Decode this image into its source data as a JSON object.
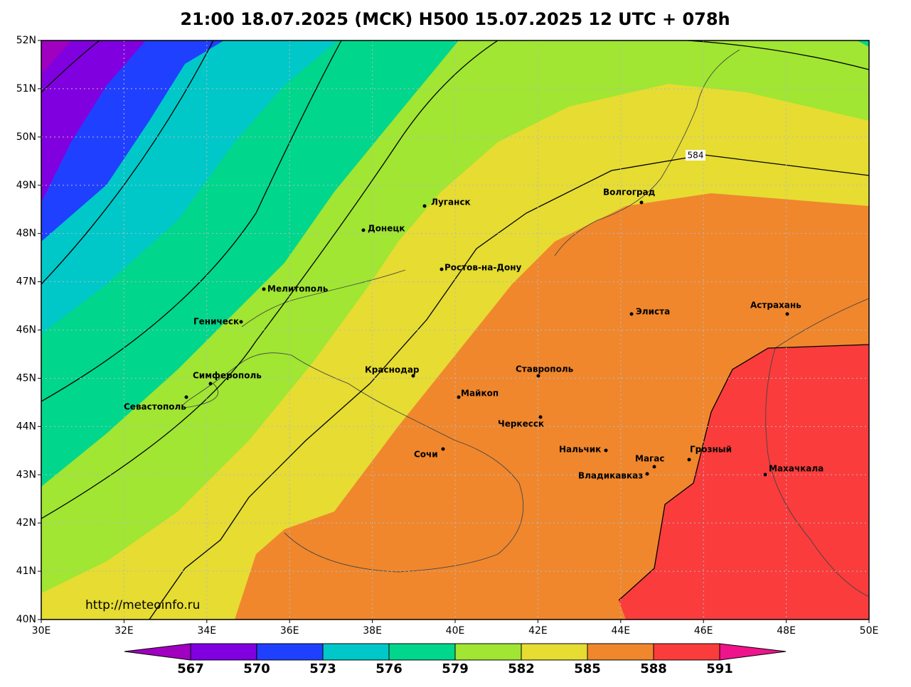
{
  "title": "21:00 18.07.2025 (MCK) H500  15.07.2025 12 UTC + 078h",
  "lat_labels": [
    "52N",
    "51N",
    "50N",
    "49N",
    "48N",
    "47N",
    "46N",
    "45N",
    "44N",
    "43N",
    "42N",
    "41N",
    "40N"
  ],
  "lon_labels": [
    "30E",
    "32E",
    "34E",
    "36E",
    "38E",
    "40E",
    "42E",
    "44E",
    "46E",
    "48E",
    "50E"
  ],
  "cities": [
    "Луганск",
    "Донецк",
    "Ростов-на-Дону",
    "Мелитополь",
    "Геническ",
    "Симферополь",
    "Севастополь",
    "Краснодар",
    "Майкоп",
    "Ставрополь",
    "Черкесск",
    "Сочи",
    "Нальчик",
    "Магас",
    "Владикавказ",
    "Грозный",
    "Махачкала",
    "Элиста",
    "Астрахань",
    "Волгоград"
  ],
  "contour_label": "584",
  "credit": "http://meteoinfo.ru",
  "colorbar_ticks": [
    567,
    570,
    573,
    576,
    579,
    582,
    585,
    588,
    591
  ]
}
